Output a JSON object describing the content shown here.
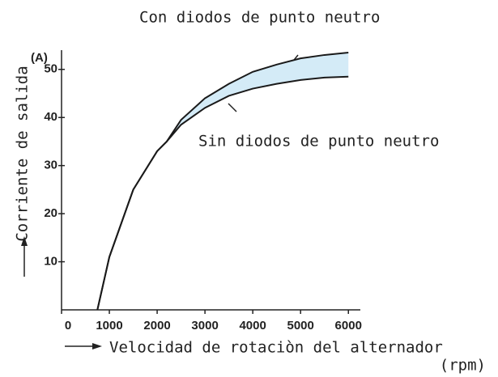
{
  "chart_data": {
    "type": "line",
    "title_annotations": [
      "Con diodos de punto neutro",
      "Sin diodos de punto neutro"
    ],
    "y_label": "Corriente de salida",
    "y_unit": "(A)",
    "x_label": "Velocidad de rotaciòn del alternador",
    "x_unit": "(rpm)",
    "x": [
      750,
      1000,
      1500,
      2000,
      2200,
      2500,
      3000,
      3500,
      4000,
      4500,
      5000,
      5500,
      6000
    ],
    "series": [
      {
        "name": "Con diodos de punto neutro",
        "color": "#1a1a1a",
        "values": [
          0,
          11,
          25,
          33,
          35,
          39.5,
          44,
          47,
          49.5,
          51,
          52.3,
          53,
          53.5
        ]
      },
      {
        "name": "Sin diodos de punto neutro",
        "color": "#1a1a1a",
        "values": [
          0,
          11,
          25,
          33,
          35,
          38.5,
          42,
          44.5,
          46,
          47,
          47.8,
          48.3,
          48.5
        ]
      }
    ],
    "fill_between_color": "#d4ebf7",
    "xlim": [
      0,
      6250
    ],
    "ylim": [
      0,
      54
    ],
    "xticks": [
      0,
      1000,
      2000,
      3000,
      4000,
      5000,
      6000
    ],
    "yticks": [
      10,
      20,
      30,
      40,
      50
    ]
  }
}
